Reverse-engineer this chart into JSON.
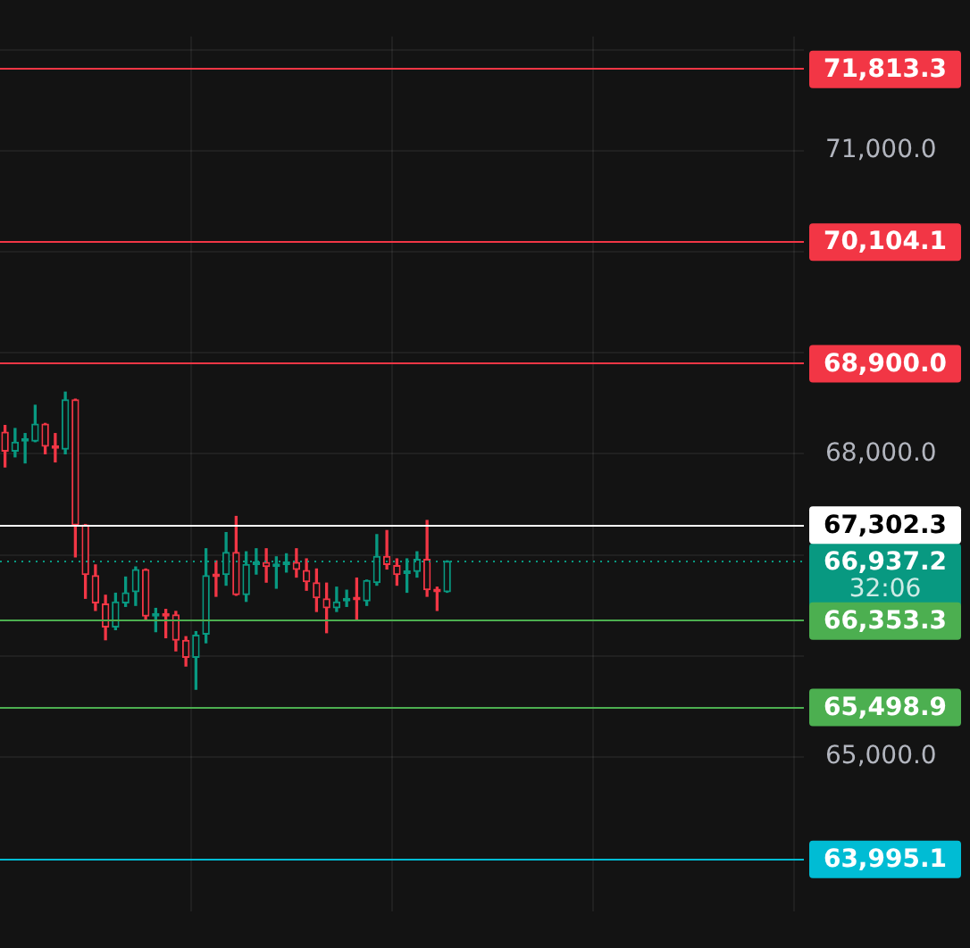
{
  "chart_data": {
    "type": "candlestick",
    "categories": [
      null,
      null,
      null,
      null,
      null,
      null,
      null,
      null,
      null,
      null,
      null,
      null,
      null,
      null,
      null,
      null,
      null,
      null,
      null,
      null,
      null,
      null,
      null,
      null,
      null,
      null,
      null,
      null,
      null,
      null,
      null,
      null,
      null,
      null,
      null,
      null,
      null,
      null,
      null,
      null,
      null,
      null,
      null,
      null,
      null,
      null,
      null,
      null,
      null,
      null,
      null,
      null,
      null,
      null,
      null,
      null,
      null,
      null,
      null,
      null,
      null,
      null,
      null,
      null,
      null,
      null,
      null,
      null,
      null,
      null,
      null,
      null,
      null,
      null,
      null,
      null,
      null,
      null,
      null,
      null
    ],
    "ohlc": [
      [
        68220,
        68280,
        67870,
        68020
      ],
      [
        68020,
        68250,
        67970,
        68120
      ],
      [
        68120,
        68200,
        67910,
        68140
      ],
      [
        68120,
        68480,
        68120,
        68300
      ],
      [
        68300,
        68300,
        68000,
        68070
      ],
      [
        68070,
        68200,
        67920,
        68050
      ],
      [
        68040,
        68610,
        68000,
        68540
      ],
      [
        68540,
        68540,
        66980,
        67290
      ],
      [
        67300,
        67300,
        66570,
        66800
      ],
      [
        66800,
        66900,
        66450,
        66520
      ],
      [
        66520,
        66600,
        66160,
        66280
      ],
      [
        66280,
        66620,
        66260,
        66540
      ],
      [
        66520,
        66780,
        66490,
        66630
      ],
      [
        66630,
        66880,
        66500,
        66860
      ],
      [
        66860,
        66860,
        66360,
        66390
      ],
      [
        66390,
        66470,
        66240,
        66410
      ],
      [
        66410,
        66460,
        66180,
        66390
      ],
      [
        66410,
        66440,
        66050,
        66150
      ],
      [
        66160,
        66190,
        65900,
        65980
      ],
      [
        65980,
        66240,
        65670,
        66210
      ],
      [
        66210,
        67060,
        66130,
        66800
      ],
      [
        66800,
        66940,
        66590,
        66780
      ],
      [
        66800,
        67220,
        66700,
        67030
      ],
      [
        67030,
        67380,
        66600,
        66600
      ],
      [
        66600,
        67030,
        66540,
        66910
      ],
      [
        66900,
        67060,
        66810,
        66910
      ],
      [
        66930,
        67060,
        66730,
        66880
      ],
      [
        66880,
        66980,
        66670,
        66890
      ],
      [
        66900,
        67010,
        66830,
        66930
      ],
      [
        66930,
        67060,
        66780,
        66850
      ],
      [
        66850,
        66960,
        66650,
        66730
      ],
      [
        66730,
        66860,
        66440,
        66570
      ],
      [
        66570,
        66720,
        66230,
        66470
      ],
      [
        66470,
        66680,
        66440,
        66540
      ],
      [
        66540,
        66650,
        66490,
        66570
      ],
      [
        66570,
        66770,
        66360,
        66550
      ],
      [
        66540,
        66750,
        66500,
        66750
      ],
      [
        66720,
        67200,
        66700,
        66990
      ],
      [
        66990,
        67240,
        66860,
        66900
      ],
      [
        66900,
        66960,
        66700,
        66800
      ],
      [
        66810,
        66960,
        66630,
        66830
      ],
      [
        66830,
        67030,
        66780,
        66960
      ],
      [
        66960,
        67340,
        66590,
        66650
      ],
      [
        66650,
        66680,
        66450,
        66630
      ],
      [
        66630,
        66940,
        66630,
        66940
      ],
      null,
      null,
      null,
      null,
      null,
      null,
      null,
      null,
      null,
      null,
      null,
      null,
      null,
      null,
      null,
      null,
      null,
      null,
      null,
      null,
      null,
      null,
      null,
      null,
      null,
      null,
      null,
      null,
      null,
      null,
      null,
      null,
      null,
      null,
      null
    ],
    "colors": [
      "#f23645",
      "#089981",
      "#089981",
      "#089981",
      "#f23645",
      "#f23645",
      "#089981",
      "#f23645",
      "#f23645",
      "#f23645",
      "#f23645",
      "#089981",
      "#089981",
      "#089981",
      "#f23645",
      "#089981",
      "#f23645",
      "#f23645",
      "#f23645",
      "#089981",
      "#089981",
      "#f23645",
      "#089981",
      "#f23645",
      "#089981",
      "#089981",
      "#f23645",
      "#089981",
      "#089981",
      "#f23645",
      "#f23645",
      "#f23645",
      "#f23645",
      "#089981",
      "#089981",
      "#f23645",
      "#089981",
      "#089981",
      "#f23645",
      "#f23645",
      "#089981",
      "#089981",
      "#f23645",
      "#f23645",
      "#089981",
      null,
      null,
      null,
      null,
      null,
      null,
      null,
      null,
      null,
      null,
      null,
      null,
      null,
      null,
      null,
      null,
      null,
      null,
      null,
      null,
      null,
      null,
      null,
      null,
      null,
      null,
      null,
      null,
      null,
      null,
      null,
      null,
      null,
      null,
      null
    ],
    "ylim": [
      63470,
      72130
    ],
    "yticks": [
      {
        "value": 65000,
        "label": "65,000.0"
      },
      {
        "value": 66000,
        "label": null
      },
      {
        "value": 67000,
        "label": null
      },
      {
        "value": 68000,
        "label": "68,000.0"
      },
      {
        "value": 69000,
        "label": null
      },
      {
        "value": 70000,
        "label": null
      },
      {
        "value": 71000,
        "label": "71,000.0"
      },
      {
        "value": 72000,
        "label": null
      }
    ],
    "ref_lines": [
      {
        "axis": "y",
        "value": 71813.3,
        "label": "71,813.3",
        "color": "#f23645"
      },
      {
        "axis": "y",
        "value": 70104.1,
        "label": "70,104.1",
        "color": "#f23645"
      },
      {
        "axis": "y",
        "value": 68900.0,
        "label": "68,900.0",
        "color": "#f23645"
      },
      {
        "axis": "y",
        "value": 67302.3,
        "label": "67,302.3",
        "color": "#ffffff"
      },
      {
        "axis": "y",
        "value": 66353.3,
        "label": "66,353.3",
        "color": "#4caf50"
      },
      {
        "axis": "y",
        "value": 65498.9,
        "label": "65,498.9",
        "color": "#4caf50"
      },
      {
        "axis": "y",
        "value": 63995.1,
        "label": "63,995.1",
        "color": "#00bcd4"
      },
      {
        "axis": "y",
        "value": 66937.2,
        "label": "66,937.2",
        "color": "#089981",
        "line_style": "dotted"
      }
    ],
    "annotations": [
      "32:06"
    ],
    "grid": true,
    "legend": false,
    "tick_labels": "y"
  }
}
